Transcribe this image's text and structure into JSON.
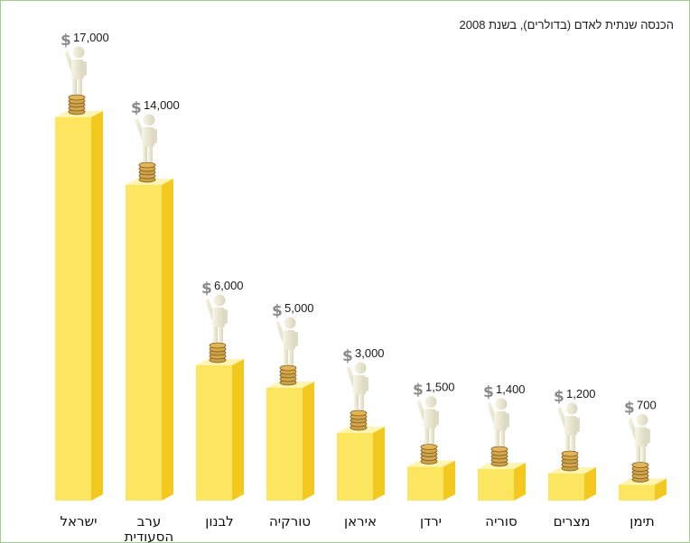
{
  "title": "הכנסה שנתית לאדם (בדולרים), בשנת 2008",
  "chart_data": {
    "type": "bar",
    "title": "הכנסה שנתית לאדם (בדולרים), בשנת 2008",
    "categories": [
      "ישראל",
      "ערב הסעודית",
      "לבנון",
      "טורקיה",
      "איראן",
      "ירדן",
      "סוריה",
      "מצרים",
      "תימן"
    ],
    "value_labels": [
      "17,000",
      "14,000",
      "6,000",
      "5,000",
      "3,000",
      "1,500",
      "1,400",
      "1,200",
      "700"
    ],
    "currency_symbol": "$",
    "values": [
      17000,
      14000,
      6000,
      5000,
      3000,
      1500,
      1400,
      1200,
      700
    ],
    "ylim": [
      0,
      17000
    ],
    "xlabel": "",
    "ylabel": "",
    "grid": false,
    "legend": false,
    "colors": {
      "front": "#fde65f",
      "side": "#f4c91f",
      "top": "#fff4b0"
    }
  }
}
